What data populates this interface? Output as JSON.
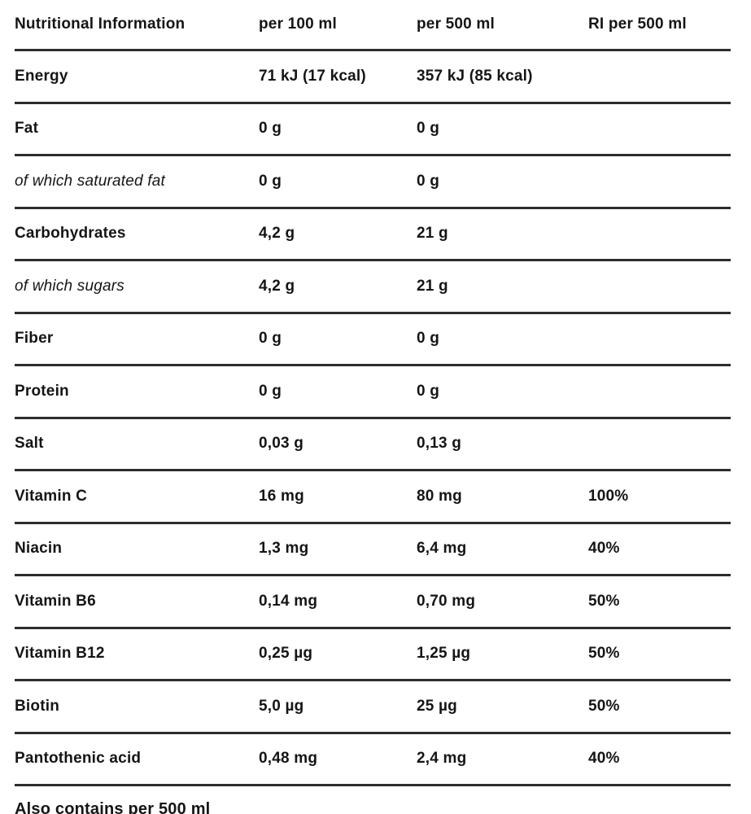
{
  "table": {
    "headers": {
      "col1": "Nutritional Information",
      "col2": "per 100 ml",
      "col3": "per 500 ml",
      "col4": "RI per 500 ml"
    },
    "rows": [
      {
        "label": "Energy",
        "per100": "71 kJ (17 kcal)",
        "per500": "357 kJ (85 kcal)",
        "ri": "",
        "italic": false
      },
      {
        "label": "Fat",
        "per100": "0 g",
        "per500": "0 g",
        "ri": "",
        "italic": false
      },
      {
        "label": "of which saturated fat",
        "per100": "0 g",
        "per500": "0 g",
        "ri": "",
        "italic": true
      },
      {
        "label": "Carbohydrates",
        "per100": "4,2 g",
        "per500": "21 g",
        "ri": "",
        "italic": false
      },
      {
        "label": "of which sugars",
        "per100": "4,2 g",
        "per500": "21 g",
        "ri": "",
        "italic": true
      },
      {
        "label": "Fiber",
        "per100": "0 g",
        "per500": "0 g",
        "ri": "",
        "italic": false
      },
      {
        "label": "Protein",
        "per100": "0 g",
        "per500": "0 g",
        "ri": "",
        "italic": false
      },
      {
        "label": "Salt",
        "per100": "0,03 g",
        "per500": "0,13 g",
        "ri": "",
        "italic": false
      },
      {
        "label": "Vitamin C",
        "per100": "16 mg",
        "per500": "80 mg",
        "ri": "100%",
        "italic": false
      },
      {
        "label": "Niacin",
        "per100": "1,3 mg",
        "per500": "6,4 mg",
        "ri": "40%",
        "italic": false
      },
      {
        "label": "Vitamin B6",
        "per100": "0,14 mg",
        "per500": "0,70 mg",
        "ri": "50%",
        "italic": false
      },
      {
        "label": "Vitamin B12",
        "per100": "0,25 µg",
        "per500": "1,25 µg",
        "ri": "50%",
        "italic": false
      },
      {
        "label": "Biotin",
        "per100": "5,0 µg",
        "per500": "25 µg",
        "ri": "50%",
        "italic": false
      },
      {
        "label": "Pantothenic acid",
        "per100": "0,48 mg",
        "per500": "2,4 mg",
        "ri": "40%",
        "italic": false
      }
    ],
    "footer": "Also contains per 500 ml"
  },
  "colors": {
    "background": "#ffffff",
    "text": "#151515",
    "divider": "#2d2d2d"
  }
}
